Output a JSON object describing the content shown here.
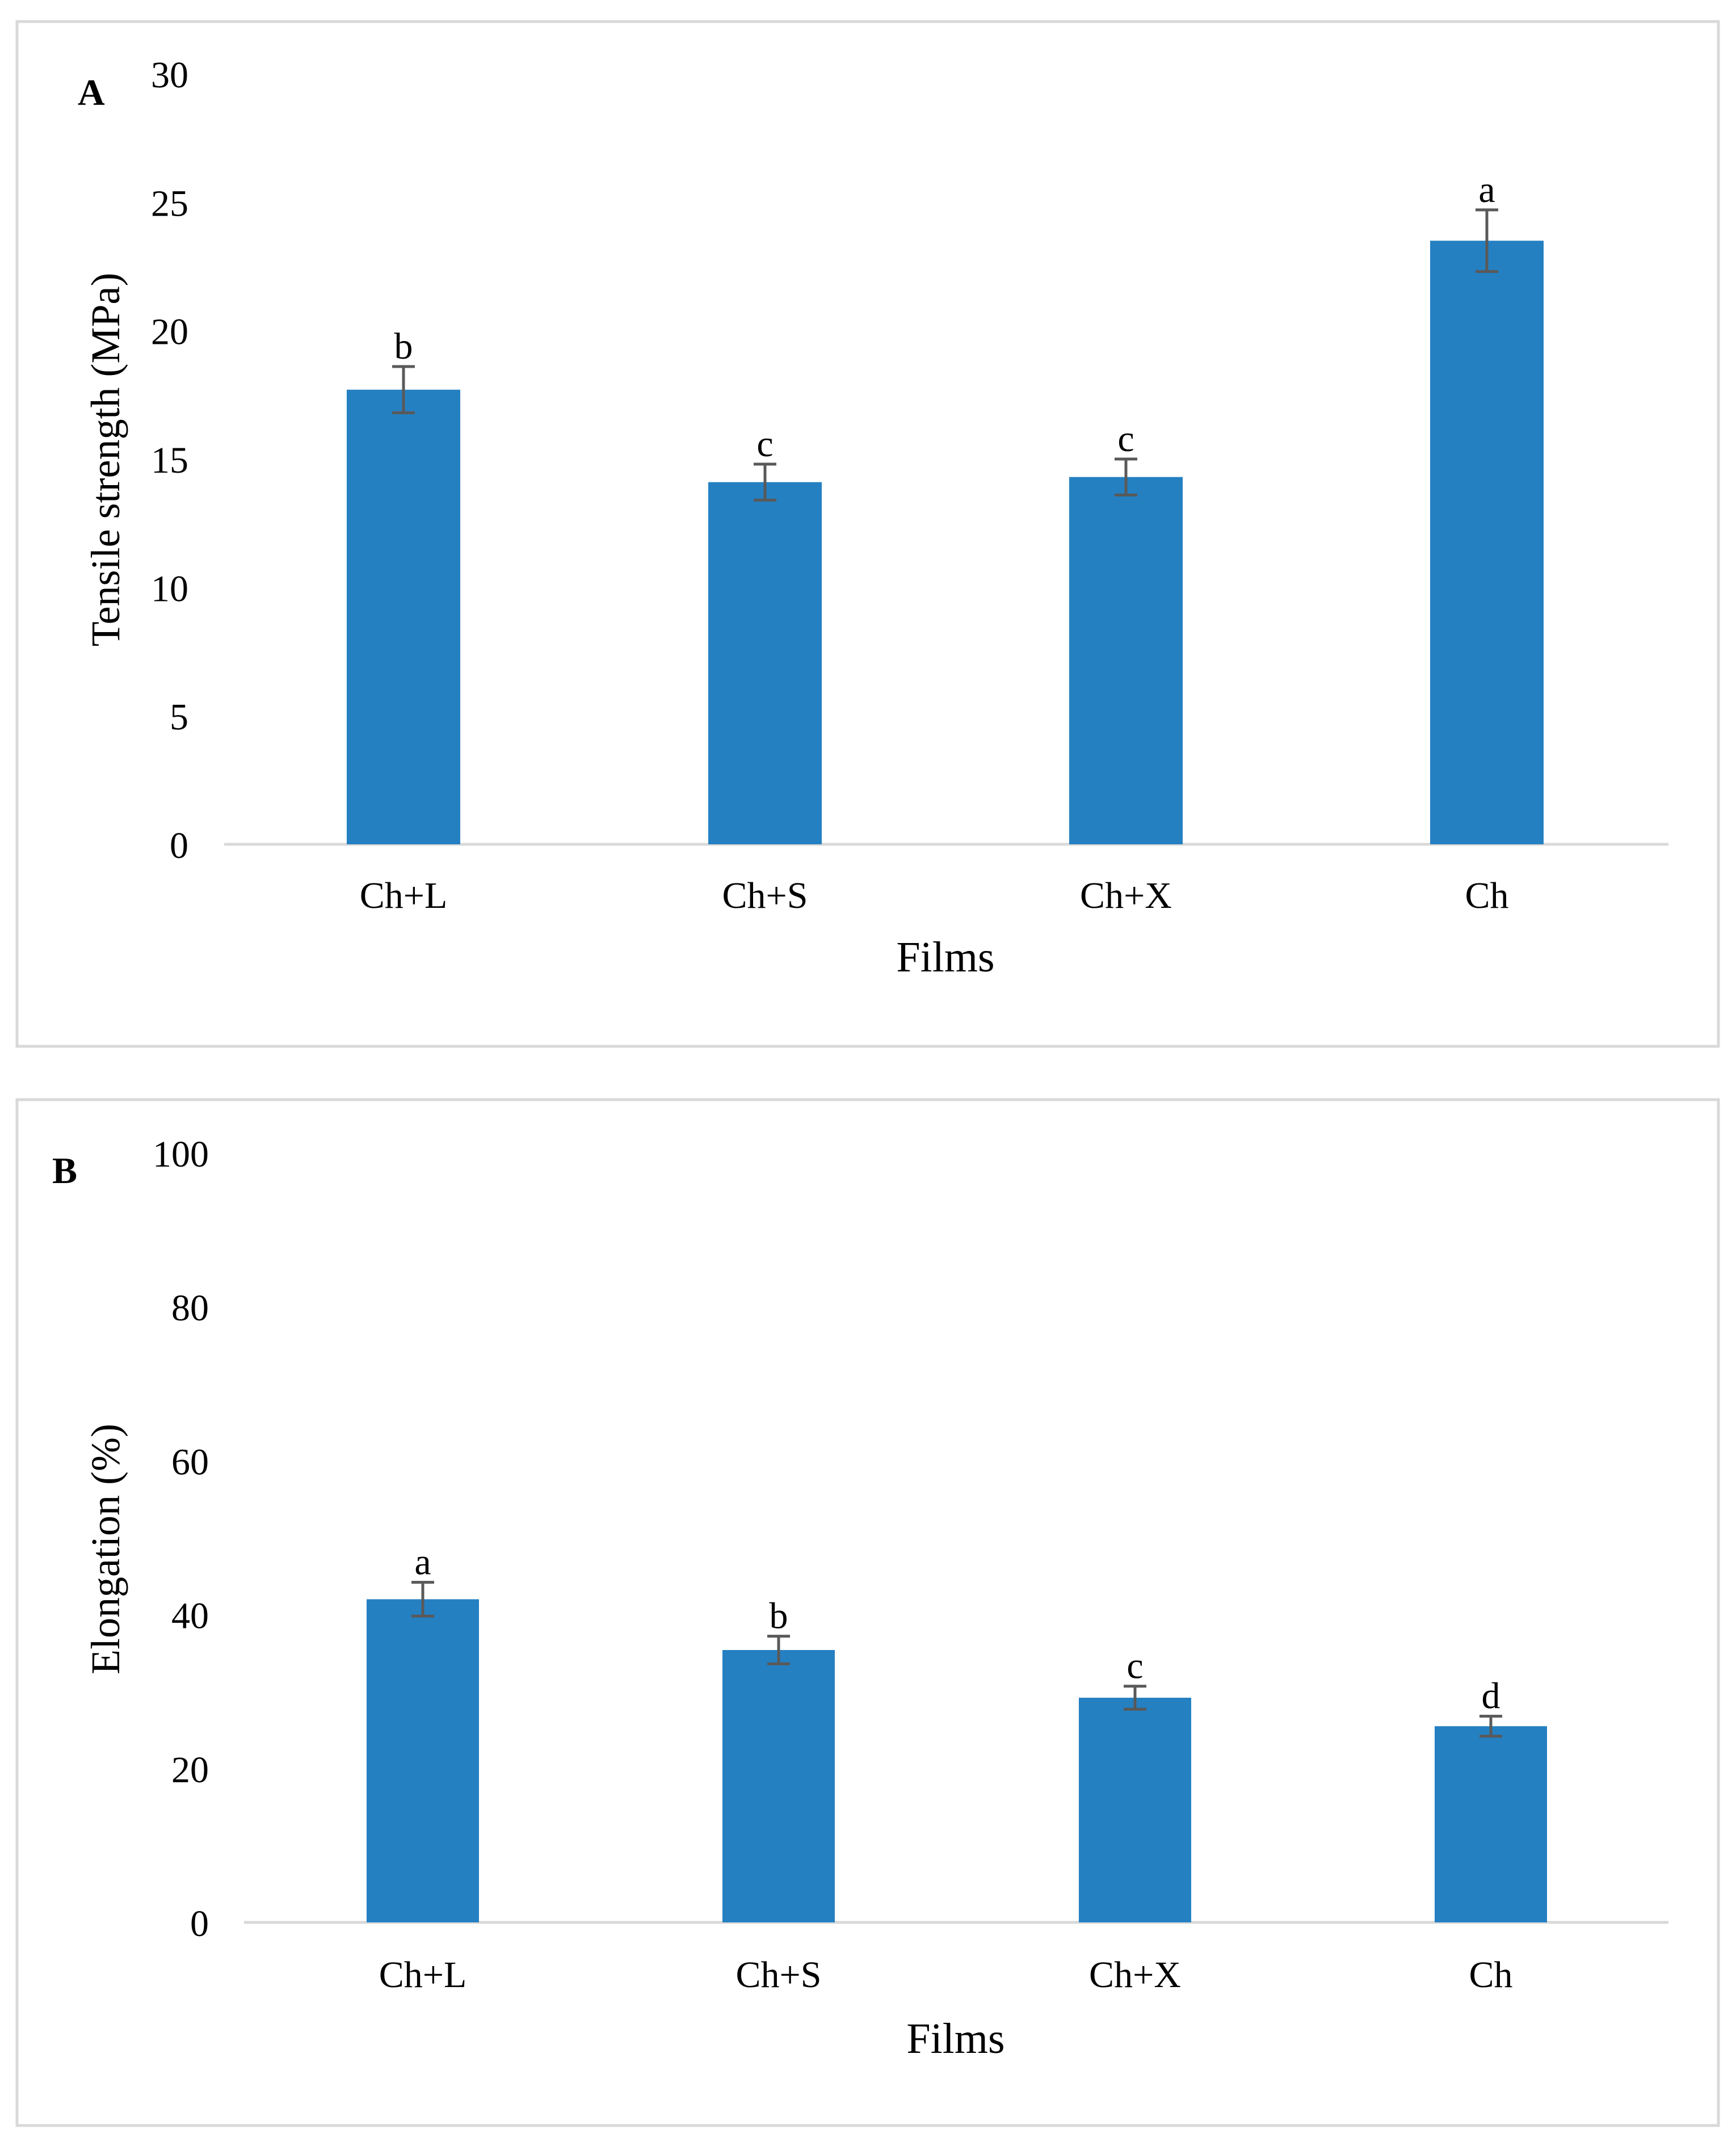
{
  "colors": {
    "bar": "#2580c2",
    "axis": "#d9d9d9",
    "frame": "#d9d9d9",
    "error_bar": "#595959",
    "text": "#000000"
  },
  "chart_data": [
    {
      "type": "bar",
      "panel_label": "A",
      "title": "",
      "categories": [
        "Ch+L",
        "Ch+S",
        "Ch+X",
        "Ch"
      ],
      "series": [
        {
          "name": "Tensile strength",
          "values": [
            17.7,
            14.1,
            14.3,
            23.5
          ],
          "errors": [
            0.9,
            0.7,
            0.7,
            1.2
          ],
          "letters": [
            "b",
            "c",
            "c",
            "a"
          ]
        }
      ],
      "xlabel": "Films",
      "ylabel": "Tensile strength (MPa)",
      "ylim": [
        0,
        30
      ],
      "yticks": [
        0,
        5,
        10,
        15,
        20,
        25,
        30
      ],
      "grid": false,
      "legend": "none"
    },
    {
      "type": "bar",
      "panel_label": "B",
      "title": "",
      "categories": [
        "Ch+L",
        "Ch+S",
        "Ch+X",
        "Ch"
      ],
      "series": [
        {
          "name": "Elongation",
          "values": [
            42.0,
            35.4,
            29.2,
            25.5
          ],
          "errors": [
            2.2,
            1.8,
            1.5,
            1.3
          ],
          "letters": [
            "a",
            "b",
            "c",
            "d"
          ]
        }
      ],
      "xlabel": "Films",
      "ylabel": "Elongation (%)",
      "ylim": [
        0,
        100
      ],
      "yticks": [
        0,
        20,
        40,
        60,
        80,
        100
      ],
      "grid": false,
      "legend": "none"
    }
  ]
}
